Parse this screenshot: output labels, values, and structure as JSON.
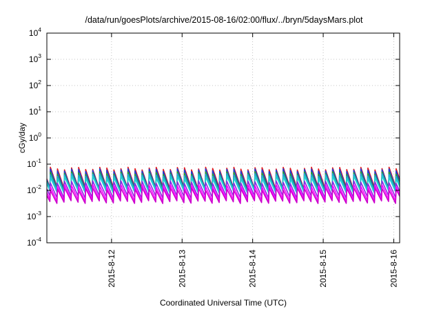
{
  "chart_data": {
    "type": "line",
    "title": "/data/run/goesPlots/archive/2015-08-16/02:00/flux/../bryn/5daysMars.plot",
    "xlabel": "Coordinated Universal Time (UTC)",
    "ylabel": "cGy/day",
    "y_scale": "log",
    "ylim": [
      0.0001,
      10000
    ],
    "y_ticks": [
      {
        "base": "10",
        "exp": "-4"
      },
      {
        "base": "10",
        "exp": "-3"
      },
      {
        "base": "10",
        "exp": "-2"
      },
      {
        "base": "10",
        "exp": "-1"
      },
      {
        "base": "10",
        "exp": "0"
      },
      {
        "base": "10",
        "exp": "1"
      },
      {
        "base": "10",
        "exp": "2"
      },
      {
        "base": "10",
        "exp": "3"
      },
      {
        "base": "10",
        "exp": "4"
      }
    ],
    "xlim": [
      "2015-08-11 02:00",
      "2015-08-16 02:00"
    ],
    "x_ticks": [
      "2015-8-12",
      "2015-8-13",
      "2015-8-14",
      "2015-8-15",
      "2015-8-16"
    ],
    "grid": true,
    "legend": "none",
    "cycle_hours": 2.4,
    "series": [
      {
        "color": "#e41a1c",
        "peak": 0.075,
        "trough": 0.012
      },
      {
        "color": "#1f3fd6",
        "peak": 0.065,
        "trough": 0.011
      },
      {
        "color": "#2ca02c",
        "peak": 0.05,
        "trough": 0.01
      },
      {
        "color": "#1fa8e0",
        "peak": 0.042,
        "trough": 0.0095
      },
      {
        "color": "#20d0d0",
        "peak": 0.034,
        "trough": 0.0085
      },
      {
        "color": "#8a2be2",
        "peak": 0.022,
        "trough": 0.0055
      },
      {
        "color": "#ff00ff",
        "peak": 0.016,
        "trough": 0.0042
      },
      {
        "color": "#cc00cc",
        "peak": 0.012,
        "trough": 0.0035
      }
    ]
  }
}
